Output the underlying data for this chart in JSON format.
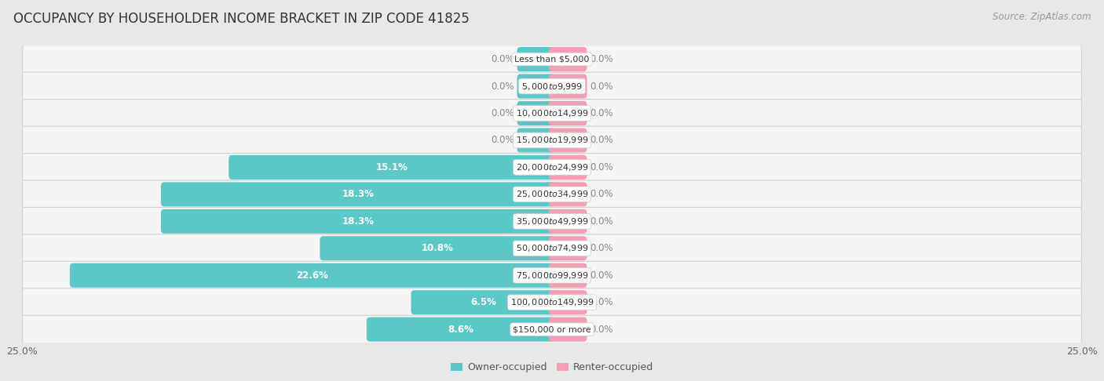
{
  "title": "OCCUPANCY BY HOUSEHOLDER INCOME BRACKET IN ZIP CODE 41825",
  "source": "Source: ZipAtlas.com",
  "categories": [
    "Less than $5,000",
    "$5,000 to $9,999",
    "$10,000 to $14,999",
    "$15,000 to $19,999",
    "$20,000 to $24,999",
    "$25,000 to $34,999",
    "$35,000 to $49,999",
    "$50,000 to $74,999",
    "$75,000 to $99,999",
    "$100,000 to $149,999",
    "$150,000 or more"
  ],
  "owner_values": [
    0.0,
    0.0,
    0.0,
    0.0,
    15.1,
    18.3,
    18.3,
    10.8,
    22.6,
    6.5,
    8.6
  ],
  "renter_values": [
    0.0,
    0.0,
    0.0,
    0.0,
    0.0,
    0.0,
    0.0,
    0.0,
    0.0,
    0.0,
    0.0
  ],
  "owner_color": "#5BC8C8",
  "renter_color": "#F4A0B4",
  "background_color": "#e8e8e8",
  "row_bg_color": "#f5f5f5",
  "row_bg_color2": "#eaeaea",
  "xlim": 25.0,
  "min_bar_width": 1.5,
  "title_fontsize": 12,
  "source_fontsize": 8.5,
  "label_fontsize": 8.5,
  "category_fontsize": 8,
  "tick_fontsize": 9,
  "legend_fontsize": 9
}
